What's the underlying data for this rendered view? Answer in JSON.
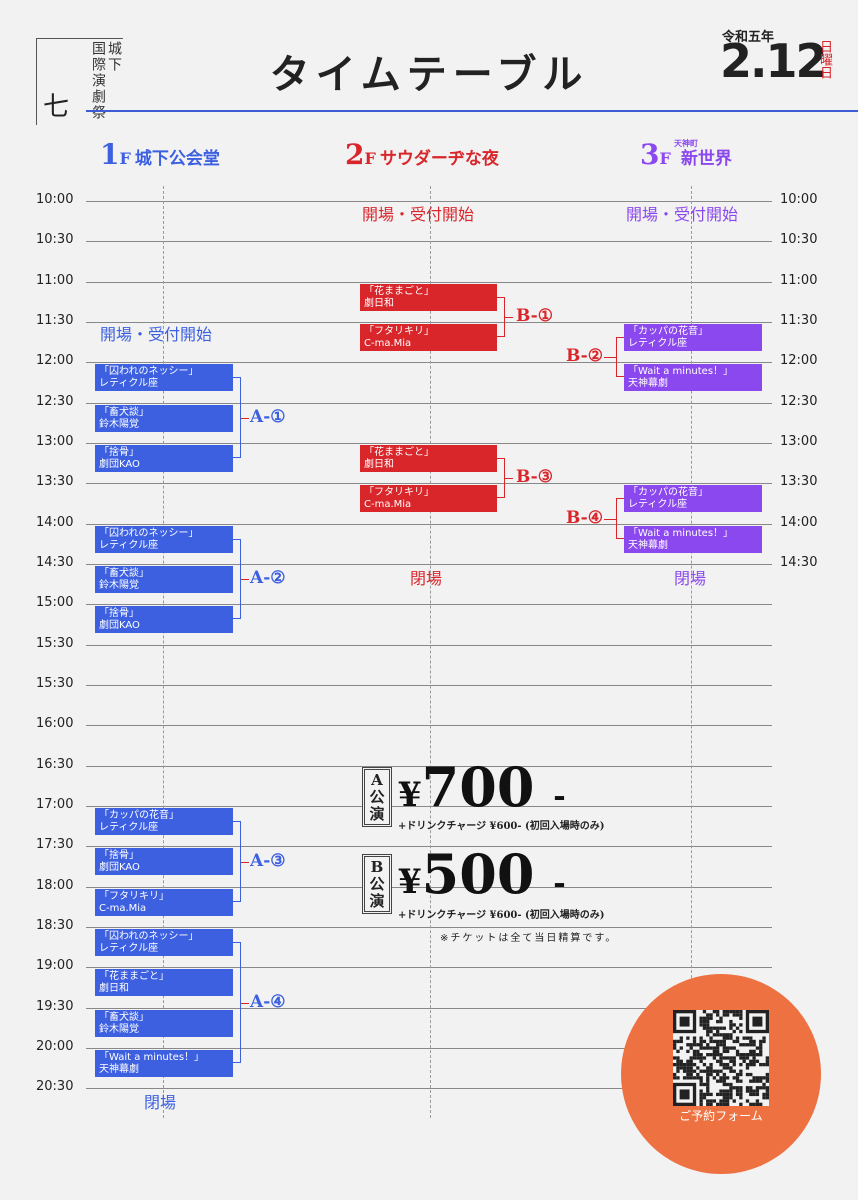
{
  "festival": {
    "number": "七",
    "col1": "城下",
    "col2": "国際演劇祭"
  },
  "title": "タイムテーブル",
  "date": {
    "era": "令和五年",
    "date": "2.12",
    "weekday": "日曜日"
  },
  "floors": {
    "f1": {
      "num": "1",
      "f": "F",
      "name": "城下公会堂"
    },
    "f2": {
      "num": "2",
      "f": "F",
      "name": "サウダーヂな夜"
    },
    "f3": {
      "num": "3",
      "f": "F",
      "sub": "天神町",
      "name": "新世界"
    }
  },
  "times": [
    "10:00",
    "10:30",
    "11:00",
    "11:30",
    "12:00",
    "12:30",
    "13:00",
    "13:30",
    "14:00",
    "14:30",
    "15:00",
    "15:30",
    "15:30",
    "16:00",
    "16:30",
    "17:00",
    "17:30",
    "18:00",
    "18:30",
    "19:00",
    "19:30",
    "20:00",
    "20:30"
  ],
  "times_right": [
    "10:00",
    "10:30",
    "11:00",
    "11:30",
    "12:00",
    "12:30",
    "13:00",
    "13:30",
    "14:00",
    "14:30"
  ],
  "notes": {
    "open1": "開場・受付開始",
    "open2": "開場・受付開始",
    "open3": "開場・受付開始",
    "close1": "閉場",
    "close2": "閉場",
    "close3": "閉場"
  },
  "programs": {
    "a1": [
      {
        "t": "「囚われのネッシー」",
        "c": "レティクル座"
      },
      {
        "t": "「畜犬談」",
        "c": "鈴木陽覚"
      },
      {
        "t": "「捨骨」",
        "c": "劇団KAO"
      }
    ],
    "a2": [
      {
        "t": "「囚われのネッシー」",
        "c": "レティクル座"
      },
      {
        "t": "「畜犬談」",
        "c": "鈴木陽覚"
      },
      {
        "t": "「捨骨」",
        "c": "劇団KAO"
      }
    ],
    "a3": [
      {
        "t": "「カッパの花音」",
        "c": "レティクル座"
      },
      {
        "t": "「捨骨」",
        "c": "劇団KAO"
      },
      {
        "t": "「フタリキリ」",
        "c": "C-ma.Mia"
      }
    ],
    "a4": [
      {
        "t": "「囚われのネッシー」",
        "c": "レティクル座"
      },
      {
        "t": "「花ままごと」",
        "c": "劇日和"
      },
      {
        "t": "「畜犬談」",
        "c": "鈴木陽覚"
      },
      {
        "t": "「Wait a minutes！」",
        "c": "天神幕劇"
      }
    ],
    "b1": [
      {
        "t": "「花ままごと」",
        "c": "劇日和"
      },
      {
        "t": "「フタリキリ」",
        "c": "C-ma.Mia"
      }
    ],
    "b3": [
      {
        "t": "「花ままごと」",
        "c": "劇日和"
      },
      {
        "t": "「フタリキリ」",
        "c": "C-ma.Mia"
      }
    ],
    "b2": [
      {
        "t": "「カッパの花音」",
        "c": "レティクル座"
      },
      {
        "t": "「Wait a minutes！」",
        "c": "天神幕劇"
      }
    ],
    "b4": [
      {
        "t": "「カッパの花音」",
        "c": "レティクル座"
      },
      {
        "t": "「Wait a minutes！」",
        "c": "天神幕劇"
      }
    ]
  },
  "labels": {
    "a1": "A-①",
    "a2": "A-②",
    "a3": "A-③",
    "a4": "A-④",
    "b1": "B-①",
    "b2": "B-②",
    "b3": "B-③",
    "b4": "B-④"
  },
  "prices": {
    "a": {
      "box": "A公演",
      "yen": "¥",
      "amount": "700",
      "dash": "-",
      "drink": "+ドリンクチャージ ¥600- (初回入場時のみ)"
    },
    "b": {
      "box": "B公演",
      "yen": "¥",
      "amount": "500",
      "dash": "-",
      "drink": "+ドリンクチャージ ¥600- (初回入場時のみ)"
    }
  },
  "ticket_note": "※チケットは全て当日精算です。",
  "qr_label": "ご予約フォーム",
  "colors": {
    "floor1": "#3d60e0",
    "floor2": "#d9262b",
    "floor3": "#8b48ee",
    "accent": "#ee7241"
  }
}
